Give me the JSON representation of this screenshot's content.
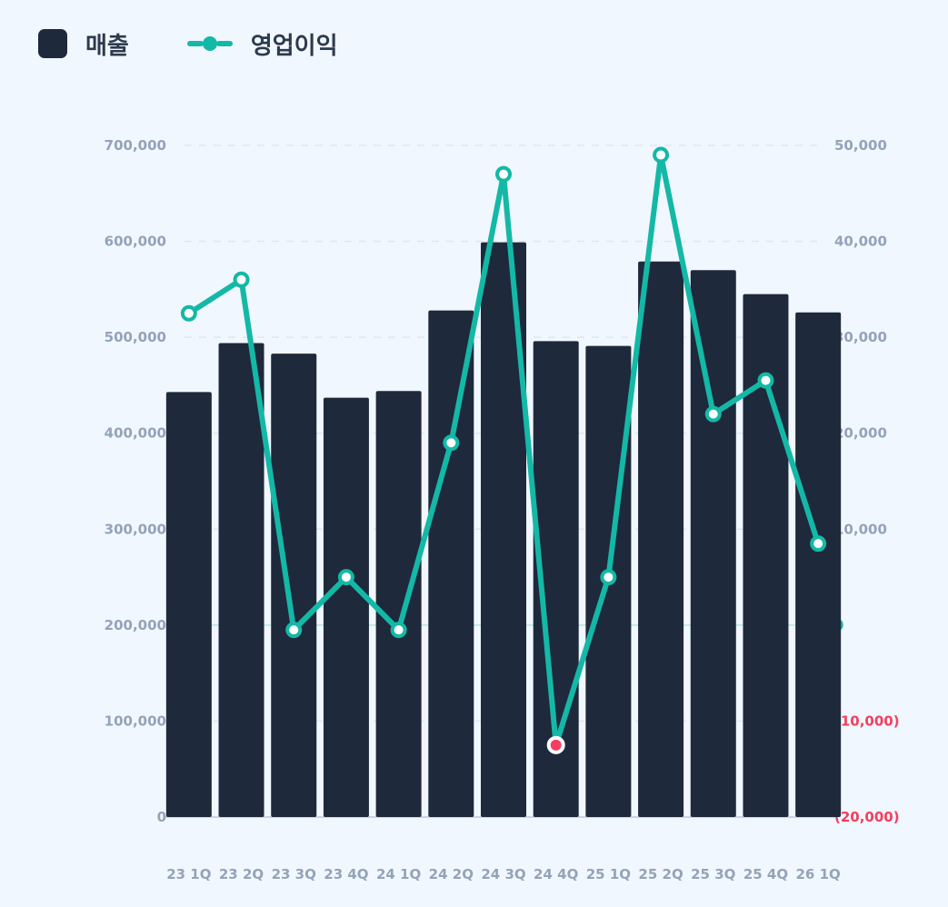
{
  "legend": {
    "bar_label": "매출",
    "line_label": "영업이익"
  },
  "colors": {
    "background": "#f1f7fe",
    "bar": "#1e293b",
    "line": "#14b8a6",
    "negative_point": "#f43f5e",
    "tick": "#94a3b8",
    "negative_tick": "#f43f5e"
  },
  "chart_data": {
    "type": "bar+line",
    "categories": [
      "23 1Q",
      "23 2Q",
      "23 3Q",
      "23 4Q",
      "24 1Q",
      "24 2Q",
      "24 3Q",
      "24 4Q",
      "25 1Q",
      "25 2Q",
      "25 3Q",
      "25 4Q",
      "26 1Q"
    ],
    "series": [
      {
        "name": "매출",
        "type": "bar",
        "axis": "left",
        "values": [
          443000,
          494000,
          483000,
          437000,
          444000,
          528000,
          599000,
          496000,
          491000,
          579000,
          570000,
          545000,
          526000
        ]
      },
      {
        "name": "영업이익",
        "type": "line",
        "axis": "right",
        "values": [
          32500,
          36000,
          -500,
          5000,
          -500,
          19000,
          47000,
          -12500,
          5000,
          49000,
          22000,
          25500,
          8500
        ]
      }
    ],
    "y_left": {
      "range": [
        0,
        700000
      ],
      "ticks": [
        0,
        100000,
        200000,
        300000,
        400000,
        500000,
        600000,
        700000
      ],
      "tick_labels": [
        "0",
        "100,000",
        "200,000",
        "300,000",
        "400,000",
        "500,000",
        "600,000",
        "700,000"
      ]
    },
    "y_right": {
      "range": [
        -20000,
        50000
      ],
      "ticks": [
        -20000,
        -10000,
        0,
        10000,
        20000,
        30000,
        40000,
        50000
      ],
      "tick_labels": [
        "(20,000)",
        "(10,000)",
        "0",
        "10,000",
        "20,000",
        "30,000",
        "40,000",
        "50,000"
      ]
    },
    "grid": "dashed horizontal",
    "legend_position": "top-left"
  }
}
